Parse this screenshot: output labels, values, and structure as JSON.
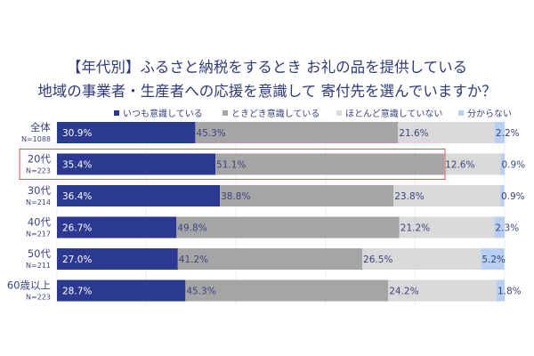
{
  "chart_data": {
    "type": "bar",
    "stacked": true,
    "orientation": "horizontal",
    "title_lines": [
      "【年代別】ふるさと納税をするとき お礼の品を提供している",
      "地域の事業者・生産者への応援を意識して 寄付先を選んでいますか？"
    ],
    "categories": [
      "全体",
      "20代",
      "30代",
      "40代",
      "50代",
      "60歳以上"
    ],
    "sample_sizes": [
      "N=1088",
      "N=223",
      "N=214",
      "N=217",
      "N=211",
      "N=223"
    ],
    "highlighted_category": "20代",
    "xlim": [
      0,
      100
    ],
    "grid": true,
    "legend_position": "top",
    "series": [
      {
        "name": "いつも意識している",
        "color": "#2b3990",
        "values": [
          30.9,
          35.4,
          36.4,
          26.7,
          27.0,
          28.7
        ]
      },
      {
        "name": "ときどき意識している",
        "color": "#a5a5a5",
        "values": [
          45.3,
          51.1,
          38.8,
          49.8,
          41.2,
          45.3
        ]
      },
      {
        "name": "ほとんど意識していない",
        "color": "#d9d9d9",
        "values": [
          21.6,
          12.6,
          23.8,
          21.2,
          26.5,
          24.2
        ]
      },
      {
        "name": "分からない",
        "color": "#b7cff2",
        "values": [
          2.2,
          0.9,
          0.9,
          2.3,
          5.2,
          1.8
        ]
      }
    ],
    "labels": [
      [
        "30.9%",
        "45.3%",
        "21.6%",
        "2.2%"
      ],
      [
        "35.4%",
        "51.1%",
        "12.6%",
        "0.9%"
      ],
      [
        "36.4%",
        "38.8%",
        "23.8%",
        "0.9%"
      ],
      [
        "26.7%",
        "49.8%",
        "21.2%",
        "2.3%"
      ],
      [
        "27.0%",
        "41.2%",
        "26.5%",
        "5.2%"
      ],
      [
        "28.7%",
        "45.3%",
        "24.2%",
        "1.8%"
      ]
    ],
    "highlight_color": "#d9534f"
  }
}
